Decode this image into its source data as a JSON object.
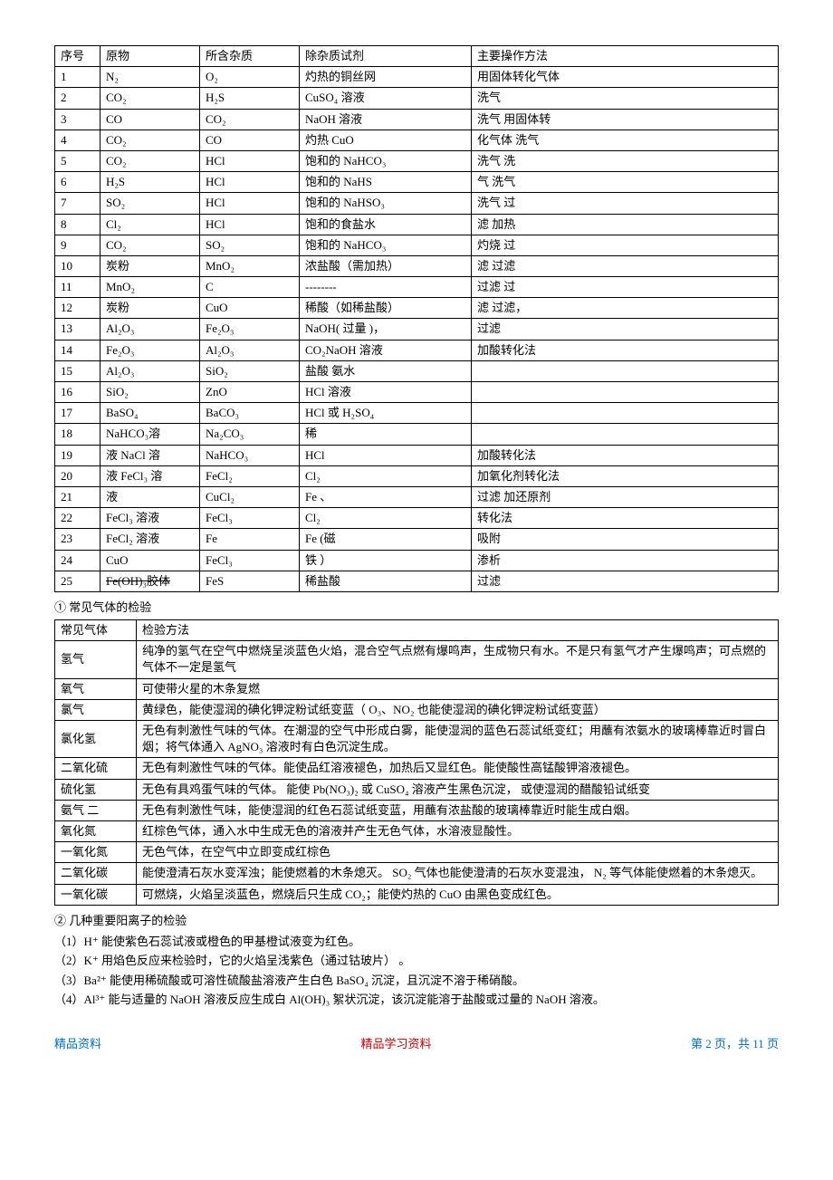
{
  "table1": {
    "headers": [
      "序号",
      "原物",
      "所含杂质",
      "除杂质试剂",
      "主要操作方法"
    ],
    "rows": [
      [
        "1",
        "N₂",
        "O₂",
        "灼热的铜丝网",
        "用固体转化气体"
      ],
      [
        "2",
        "CO₂",
        "H₂S",
        "CuSO₄ 溶液",
        "洗气"
      ],
      [
        "3",
        "CO",
        "CO₂",
        "NaOH  溶液",
        "洗气 用固体转"
      ],
      [
        "4",
        "CO₂",
        "CO",
        "灼热  CuO",
        "化气体 洗气"
      ],
      [
        "5",
        "CO₂",
        "HCl",
        "饱和的 NaHCO₃",
        "洗气 洗"
      ],
      [
        "6",
        "H₂S",
        "HCl",
        "饱和的 NaHS",
        "气 洗气"
      ],
      [
        "7",
        "SO₂",
        "HCl",
        "饱和的 NaHSO₃",
        "洗气 过"
      ],
      [
        "8",
        "Cl₂",
        "HCl",
        "饱和的食盐水",
        "滤 加热"
      ],
      [
        "9",
        "CO₂",
        "SO₂",
        "饱和的  NaHCO₃",
        "灼烧 过"
      ],
      [
        "10",
        "炭粉",
        "MnO₂",
        "浓盐酸（需加热）",
        "滤 过滤"
      ],
      [
        "11",
        "MnO₂",
        "C",
        "--------",
        "过滤 过"
      ],
      [
        "12",
        "炭粉",
        "CuO",
        "稀酸（如稀盐酸）",
        "滤 过滤，"
      ],
      [
        "13",
        "Al₂O₃",
        "Fe₂O₃",
        "NaOH( 过量 )，",
        "过滤"
      ],
      [
        "14",
        "Fe₂O₃",
        "Al₂O₃",
        "CO₂NaOH  溶液",
        "加酸转化法"
      ],
      [
        "15",
        "Al₂O₃",
        "SiO₂",
        "盐酸  氨水",
        ""
      ],
      [
        "16",
        "SiO₂",
        "ZnO",
        "HCl  溶液",
        ""
      ],
      [
        "17",
        "BaSO₄",
        "BaCO₃",
        "HCl  或  H₂SO₄",
        ""
      ],
      [
        "18",
        "NaHCO₃溶",
        "Na₂CO₃",
        "稀",
        ""
      ],
      [
        "19",
        "液 NaCl  溶",
        "NaHCO₃",
        "HCl",
        "加酸转化法"
      ],
      [
        "20",
        "液 FeCl₃ 溶",
        "FeCl₂",
        "Cl₂",
        "加氧化剂转化法"
      ],
      [
        "21",
        "液",
        "CuCl₂",
        "Fe   、",
        "过滤 加还原剂"
      ],
      [
        "22",
        "FeCl₃ 溶液",
        "FeCl₃",
        "Cl₂",
        "转化法"
      ],
      [
        "23",
        "FeCl₂ 溶液",
        "Fe",
        "Fe (磁",
        "吸附"
      ],
      [
        "24",
        "CuO",
        "FeCl₃",
        "铁 ）",
        "渗析"
      ]
    ]
  },
  "row25": {
    "index": "25",
    "c2a": "Fe(OH)₃胶体",
    "c3": "FeS",
    "c4": "稀盐酸",
    "c5": "过滤"
  },
  "head1": "① 常见气体的检验",
  "table2": {
    "header": [
      "常见气体",
      "检验方法"
    ],
    "rows": [
      [
        "氢气",
        "纯净的氢气在空气中燃烧呈淡蓝色火焰，混合空气点燃有爆鸣声，生成物只有水。不是只有氢气才产生爆鸣声；可点燃的气体不一定是氢气"
      ],
      [
        "氧气",
        "可使带火星的木条复燃"
      ],
      [
        "氯气",
        "黄绿色，能使湿润的碘化钾淀粉试纸变蓝（    O₃、NO₂ 也能使湿润的碘化钾淀粉试纸变蓝）"
      ],
      [
        "氯化氢",
        "无色有刺激性气味的气体。在潮湿的空气中形成白雾，能使湿润的蓝色石蕊试纸变红；用蘸有浓氨水的玻璃棒靠近时冒白烟；将气体通入    AgNO₃ 溶液时有白色沉淀生成。"
      ],
      [
        "二氧化硫",
        "无色有刺激性气味的气体。能使品红溶液褪色，加热后又显红色。能使酸性高锰酸钾溶液褪色。"
      ],
      [
        "硫化氢",
        "无色有具鸡蛋气味的气体。 能使 Pb(NO₃)₂ 或 CuSO₄ 溶液产生黑色沉淀， 或使湿润的醋酸铅试纸变"
      ],
      [
        "氨气 二",
        "无色有刺激性气味，能使湿润的红色石蕊试纸变蓝，用蘸有浓盐酸的玻璃棒靠近时能生成白烟。"
      ],
      [
        "氧化氮",
        "红棕色气体，通入水中生成无色的溶液并产生无色气体，水溶液显酸性。"
      ],
      [
        "一氧化氮",
        "无色气体，在空气中立即变成红棕色"
      ],
      [
        "二氧化碳",
        "能使澄清石灰水变浑浊；能使燃着的木条熄灭。    SO₂ 气体也能使澄清的石灰水变混浊，   N₂ 等气体能使燃着的木条熄灭。"
      ],
      [
        "一氧化碳",
        "可燃烧，火焰呈淡蓝色，燃烧后只生成    CO₂；能使灼热的  CuO 由黑色变成红色。"
      ]
    ]
  },
  "head2": "② 几种重要阳离子的检验",
  "paras": [
    "（1）H⁺  能使紫色石蕊试液或橙色的甲基橙试液变为红色。",
    "（2）K⁺  用焰色反应来检验时，它的火焰呈浅紫色（通过钴玻片）    。",
    "（3）Ba²⁺  能使用稀硫酸或可溶性硫酸盐溶液产生白色    BaSO₄ 沉淀，且沉淀不溶于稀硝酸。",
    "（4）Al³⁺  能与适量的  NaOH 溶液反应生成白  Al(OH)₃ 絮状沉淀，该沉淀能溶于盐酸或过量的   NaOH 溶液。"
  ],
  "footer": {
    "left": "精品资料",
    "center": "精品学习资料",
    "right": "第 2 页，共 11 页"
  },
  "colors": {
    "blue": "#0070c0",
    "red": "#c00000",
    "black": "#000000",
    "bg": "#ffffff"
  }
}
